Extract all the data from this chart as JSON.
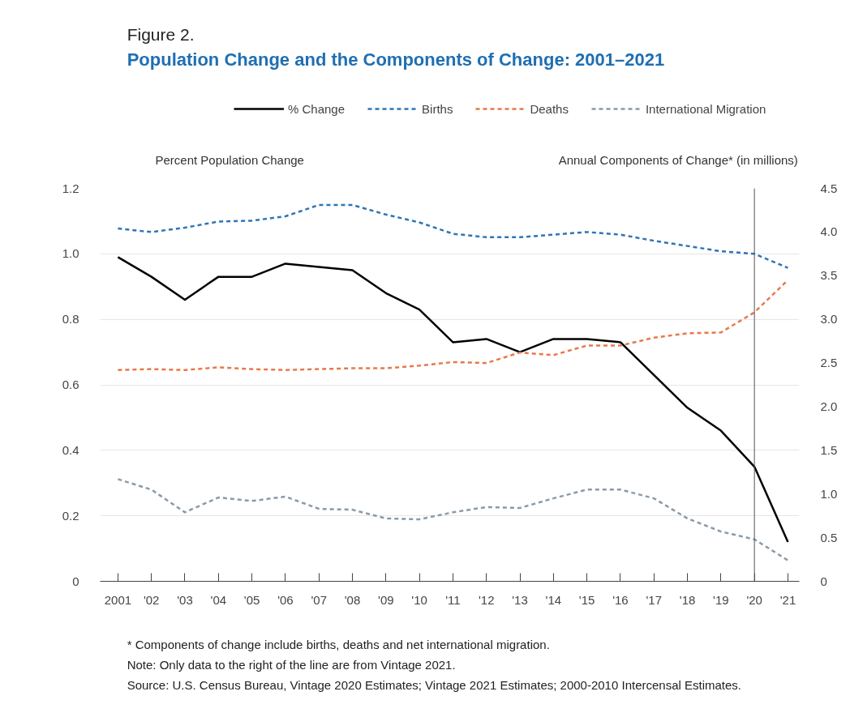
{
  "chart_data": {
    "type": "line",
    "title": "Figure 2.",
    "subtitle": "Population Change and the Components of Change: 2001–2021",
    "ylabel": "Percent Population Change",
    "y2label": "Annual Components of Change* (in millions)",
    "x": [
      2001,
      2002,
      2003,
      2004,
      2005,
      2006,
      2007,
      2008,
      2009,
      2010,
      2011,
      2012,
      2013,
      2014,
      2015,
      2016,
      2017,
      2018,
      2019,
      2020,
      2021
    ],
    "xlim": [
      2000.47,
      2021.34
    ],
    "xticks": [
      {
        "value": 2001,
        "label": "2001"
      },
      {
        "value": 2002,
        "label": "'02"
      },
      {
        "value": 2003,
        "label": "'03"
      },
      {
        "value": 2004,
        "label": "'04"
      },
      {
        "value": 2005,
        "label": "'05"
      },
      {
        "value": 2006,
        "label": "'06"
      },
      {
        "value": 2007,
        "label": "'07"
      },
      {
        "value": 2008,
        "label": "'08"
      },
      {
        "value": 2009,
        "label": "'09"
      },
      {
        "value": 2010,
        "label": "'10"
      },
      {
        "value": 2011,
        "label": "'11"
      },
      {
        "value": 2012,
        "label": "'12"
      },
      {
        "value": 2013,
        "label": "'13"
      },
      {
        "value": 2014,
        "label": "'14"
      },
      {
        "value": 2015,
        "label": "'15"
      },
      {
        "value": 2016,
        "label": "'16"
      },
      {
        "value": 2017,
        "label": "'17"
      },
      {
        "value": 2018,
        "label": "'18"
      },
      {
        "value": 2019,
        "label": "'19"
      },
      {
        "value": 2020,
        "label": "'20"
      },
      {
        "value": 2021,
        "label": "'21"
      }
    ],
    "ylim": [
      0,
      1.2
    ],
    "yticks": [
      0,
      0.2,
      0.4,
      0.6,
      0.8,
      {
        "value": 1,
        "label": "1.0"
      },
      1.2
    ],
    "y2lim": [
      0,
      4.5
    ],
    "y2ticks": [
      0,
      0.5,
      {
        "value": 1,
        "label": "1.0"
      },
      1.5,
      {
        "value": 2,
        "label": "2.0"
      },
      2.5,
      {
        "value": 3,
        "label": "3.0"
      },
      3.5,
      {
        "value": 4,
        "label": "4.0"
      },
      4.5
    ],
    "series": [
      {
        "name": "% Change",
        "color": "#000000",
        "line_style": "solid",
        "values": [
          0.99,
          0.93,
          0.86,
          0.93,
          0.93,
          0.97,
          0.96,
          0.95,
          0.88,
          0.83,
          0.73,
          0.74,
          0.7,
          0.74,
          0.74,
          0.73,
          0.63,
          0.53,
          0.46,
          0.35,
          0.12
        ]
      },
      {
        "name": "Births",
        "color": "#2e75b6",
        "line_style": "dashed",
        "axis": "y2",
        "values": [
          4.04,
          4.0,
          4.05,
          4.12,
          4.13,
          4.18,
          4.31,
          4.31,
          4.2,
          4.11,
          3.98,
          3.94,
          3.94,
          3.97,
          4.0,
          3.97,
          3.9,
          3.84,
          3.78,
          3.75,
          3.59
        ]
      },
      {
        "name": "Deaths",
        "color": "#e8784a",
        "line_style": "dashed",
        "axis": "y2",
        "values": [
          2.42,
          2.43,
          2.42,
          2.45,
          2.43,
          2.42,
          2.43,
          2.44,
          2.44,
          2.47,
          2.51,
          2.5,
          2.62,
          2.59,
          2.7,
          2.7,
          2.79,
          2.84,
          2.85,
          3.08,
          3.45
        ]
      },
      {
        "name": "International Migration",
        "color": "#8a9aa8",
        "line_style": "dashed",
        "axis": "y2",
        "values": [
          1.17,
          1.05,
          0.79,
          0.96,
          0.92,
          0.97,
          0.83,
          0.82,
          0.72,
          0.71,
          0.79,
          0.85,
          0.84,
          0.95,
          1.05,
          1.05,
          0.95,
          0.72,
          0.57,
          0.48,
          0.24
        ]
      }
    ],
    "ref_lines": [
      {
        "axis": "x",
        "value": 2020,
        "color": "#555555"
      }
    ],
    "grid": "y",
    "legend": "top",
    "annotations": [
      "* Components of change include births, deaths and net international migration.",
      "Note: Only data to the right of the line are from Vintage 2021.",
      "Source: U.S. Census Bureau, Vintage 2020 Estimates; Vintage 2021 Estimates; 2000-2010 Intercensal Estimates."
    ]
  }
}
